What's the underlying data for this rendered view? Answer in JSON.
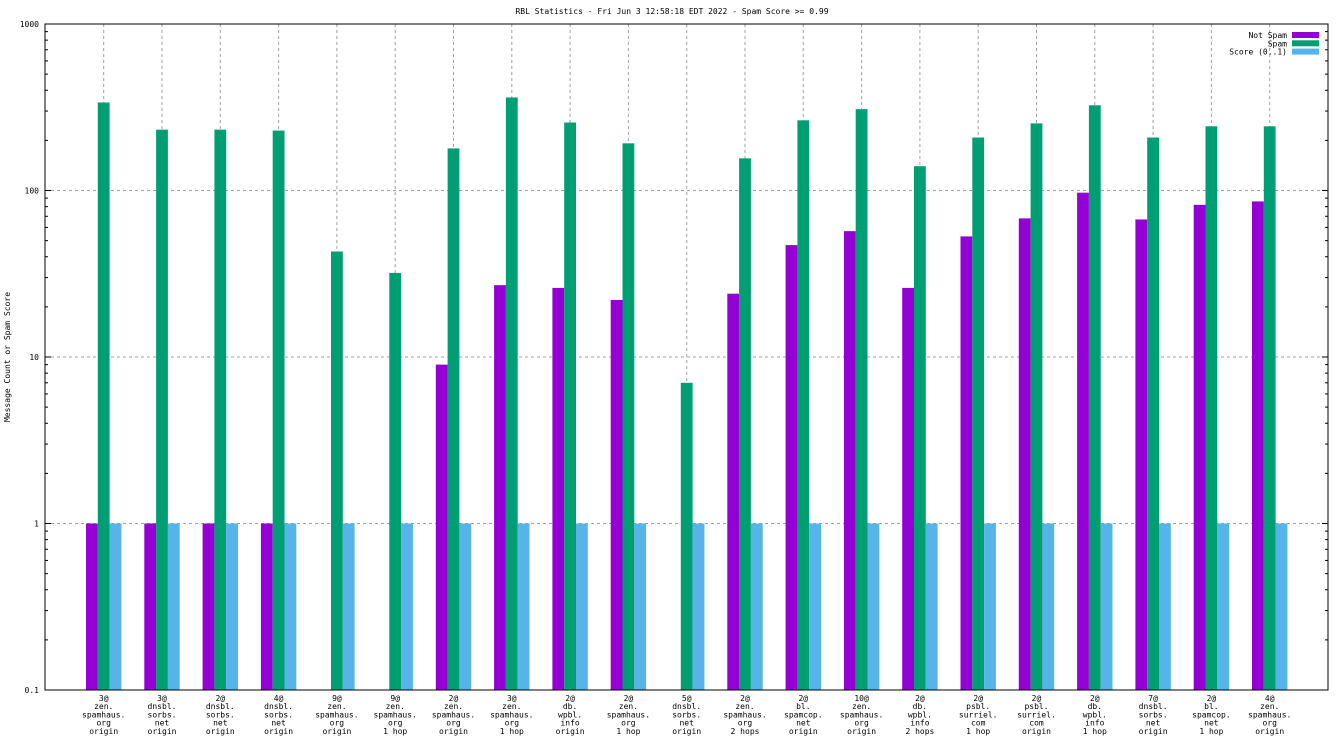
{
  "chart_data": {
    "type": "bar",
    "title": "RBL Statistics - Fri Jun  3 12:58:18 EDT 2022 - Spam Score >= 0.99",
    "xlabel": "",
    "ylabel": "Message Count or Spam Score",
    "yscale": "log",
    "ylim": [
      0.1,
      1000
    ],
    "yticks": [
      "0.1",
      "1",
      "10",
      "100",
      "1000"
    ],
    "ytick_values": [
      0.1,
      1,
      10,
      100,
      1000
    ],
    "grid": true,
    "legend_position": "top-right",
    "categories": [
      [
        "3@",
        "zen.",
        "spamhaus.",
        "org",
        "origin"
      ],
      [
        "3@",
        "dnsbl.",
        "sorbs.",
        "net",
        "origin"
      ],
      [
        "2@",
        "dnsbl.",
        "sorbs.",
        "net",
        "origin"
      ],
      [
        "4@",
        "dnsbl.",
        "sorbs.",
        "net",
        "origin"
      ],
      [
        "9@",
        "zen.",
        "spamhaus.",
        "org",
        "origin"
      ],
      [
        "9@",
        "zen.",
        "spamhaus.",
        "org",
        "1 hop"
      ],
      [
        "2@",
        "zen.",
        "spamhaus.",
        "org",
        "origin"
      ],
      [
        "3@",
        "zen.",
        "spamhaus.",
        "org",
        "1 hop"
      ],
      [
        "2@",
        "db.",
        "wpbl.",
        "info",
        "origin"
      ],
      [
        "2@",
        "zen.",
        "spamhaus.",
        "org",
        "1 hop"
      ],
      [
        "5@",
        "dnsbl.",
        "sorbs.",
        "net",
        "origin"
      ],
      [
        "2@",
        "zen.",
        "spamhaus.",
        "org",
        "2 hops"
      ],
      [
        "2@",
        "bl.",
        "spamcop.",
        "net",
        "origin"
      ],
      [
        "10@",
        "zen.",
        "spamhaus.",
        "org",
        "origin"
      ],
      [
        "2@",
        "db.",
        "wpbl.",
        "info",
        "2 hops"
      ],
      [
        "2@",
        "psbl.",
        "surriel.",
        "com",
        "1 hop"
      ],
      [
        "2@",
        "psbl.",
        "surriel.",
        "com",
        "origin"
      ],
      [
        "2@",
        "db.",
        "wpbl.",
        "info",
        "1 hop"
      ],
      [
        "7@",
        "dnsbl.",
        "sorbs.",
        "net",
        "origin"
      ],
      [
        "2@",
        "bl.",
        "spamcop.",
        "net",
        "1 hop"
      ],
      [
        "4@",
        "zen.",
        "spamhaus.",
        "org",
        "origin"
      ]
    ],
    "series": [
      {
        "name": "Not Spam",
        "color": "#9400d3",
        "values": [
          1,
          1,
          1,
          1,
          null,
          null,
          9,
          27,
          26,
          22,
          null,
          24,
          47,
          57,
          26,
          53,
          68,
          97,
          67,
          82,
          86
        ]
      },
      {
        "name": "Spam",
        "color": "#009e73",
        "values": [
          338,
          232,
          232,
          229,
          43,
          32,
          179,
          362,
          256,
          192,
          7,
          156,
          264,
          308,
          140,
          208,
          253,
          325,
          208,
          243,
          243
        ]
      },
      {
        "name": "Score (0..1)",
        "color": "#56b4e9",
        "values": [
          1,
          1,
          1,
          1,
          1,
          1,
          1,
          1,
          1,
          1,
          1,
          1,
          1,
          1,
          1,
          1,
          1,
          1,
          1,
          1,
          1
        ]
      }
    ]
  }
}
